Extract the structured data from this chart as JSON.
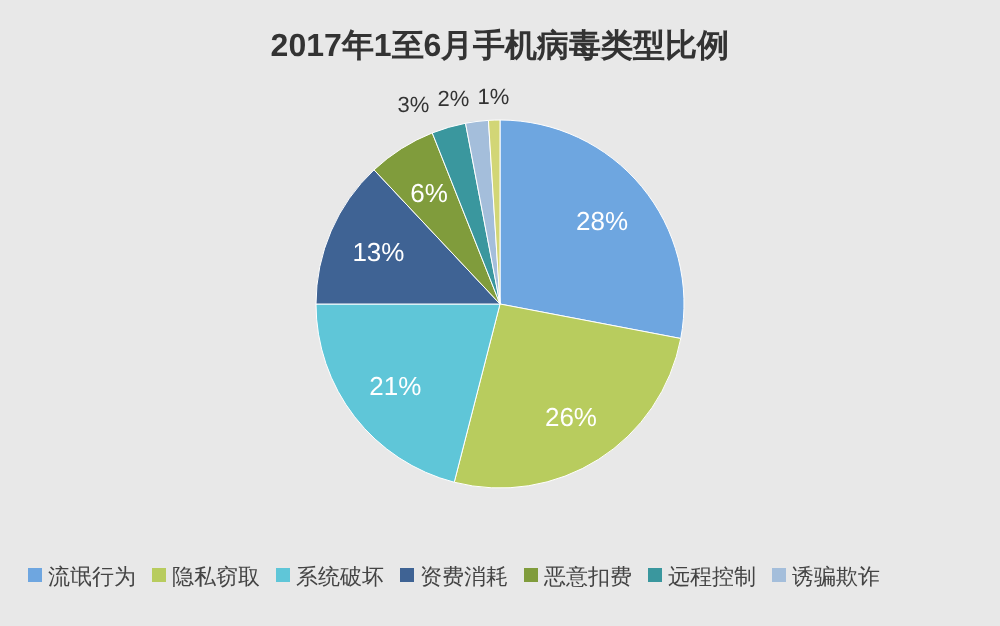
{
  "chart_data": {
    "type": "pie",
    "title": "2017年1至6月手机病毒类型比例",
    "categories": [
      "流氓行为",
      "隐私窃取",
      "系统破坏",
      "资费消耗",
      "恶意扣费",
      "远程控制",
      "诱骗欺诈",
      null
    ],
    "values": [
      28,
      26,
      21,
      13,
      6,
      3,
      2,
      1
    ],
    "colors": [
      "#6ea6e0",
      "#b8cc5e",
      "#5fc6d8",
      "#3f6394",
      "#809c3c",
      "#3a979e",
      "#a4bedb",
      "#d2d676"
    ],
    "value_labels": [
      "28%",
      "26%",
      "21%",
      "13%",
      "6%",
      "3%",
      "2%",
      "1%"
    ],
    "legend": "bottom"
  }
}
